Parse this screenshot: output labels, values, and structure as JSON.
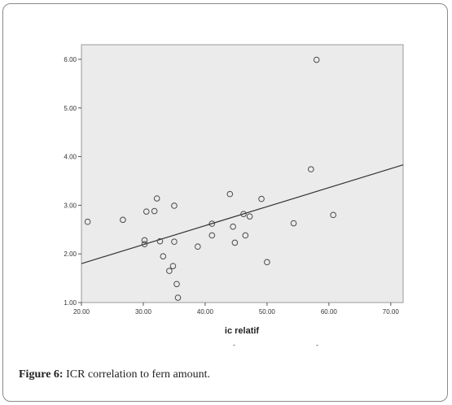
{
  "caption": {
    "label": "Figure 6:",
    "text": " ICR correlation to fern amount."
  },
  "chart_data": {
    "type": "scatter",
    "xlabel": "ic relatif",
    "ylabel": "",
    "xlim": [
      20,
      72
    ],
    "ylim": [
      1.0,
      6.3
    ],
    "x_ticks": [
      "20.00",
      "30.00",
      "40.00",
      "50.00",
      "60.00",
      "70.00"
    ],
    "y_ticks": [
      "1.00",
      "2.00",
      "3.00",
      "4.00",
      "5.00",
      "6.00"
    ],
    "x_tick_values": [
      20,
      30,
      40,
      50,
      60,
      70
    ],
    "y_tick_values": [
      1,
      2,
      3,
      4,
      5,
      6
    ],
    "points": [
      {
        "x": 21.0,
        "y": 2.66
      },
      {
        "x": 26.7,
        "y": 2.7
      },
      {
        "x": 30.2,
        "y": 2.28
      },
      {
        "x": 30.2,
        "y": 2.2
      },
      {
        "x": 30.5,
        "y": 2.87
      },
      {
        "x": 31.8,
        "y": 2.88
      },
      {
        "x": 32.2,
        "y": 3.14
      },
      {
        "x": 32.7,
        "y": 2.26
      },
      {
        "x": 33.2,
        "y": 1.95
      },
      {
        "x": 34.2,
        "y": 1.65
      },
      {
        "x": 34.8,
        "y": 1.75
      },
      {
        "x": 35.0,
        "y": 2.99
      },
      {
        "x": 35.0,
        "y": 2.25
      },
      {
        "x": 35.4,
        "y": 1.38
      },
      {
        "x": 35.6,
        "y": 1.1
      },
      {
        "x": 38.8,
        "y": 2.15
      },
      {
        "x": 41.1,
        "y": 2.62
      },
      {
        "x": 41.1,
        "y": 2.38
      },
      {
        "x": 44.0,
        "y": 3.23
      },
      {
        "x": 44.5,
        "y": 2.56
      },
      {
        "x": 44.8,
        "y": 2.23
      },
      {
        "x": 46.2,
        "y": 2.82
      },
      {
        "x": 46.5,
        "y": 2.38
      },
      {
        "x": 47.2,
        "y": 2.77
      },
      {
        "x": 49.1,
        "y": 3.13
      },
      {
        "x": 50.0,
        "y": 1.83
      },
      {
        "x": 54.3,
        "y": 2.63
      },
      {
        "x": 57.1,
        "y": 3.74
      },
      {
        "x": 58.0,
        "y": 5.99
      },
      {
        "x": 60.7,
        "y": 2.8
      }
    ],
    "fit_line": {
      "x": [
        20,
        72
      ],
      "y": [
        1.8,
        3.83
      ]
    },
    "grid": false,
    "colors": {
      "plot_bg": "#ebebeb",
      "marker": "#4a4a4a",
      "line": "#333333"
    }
  }
}
